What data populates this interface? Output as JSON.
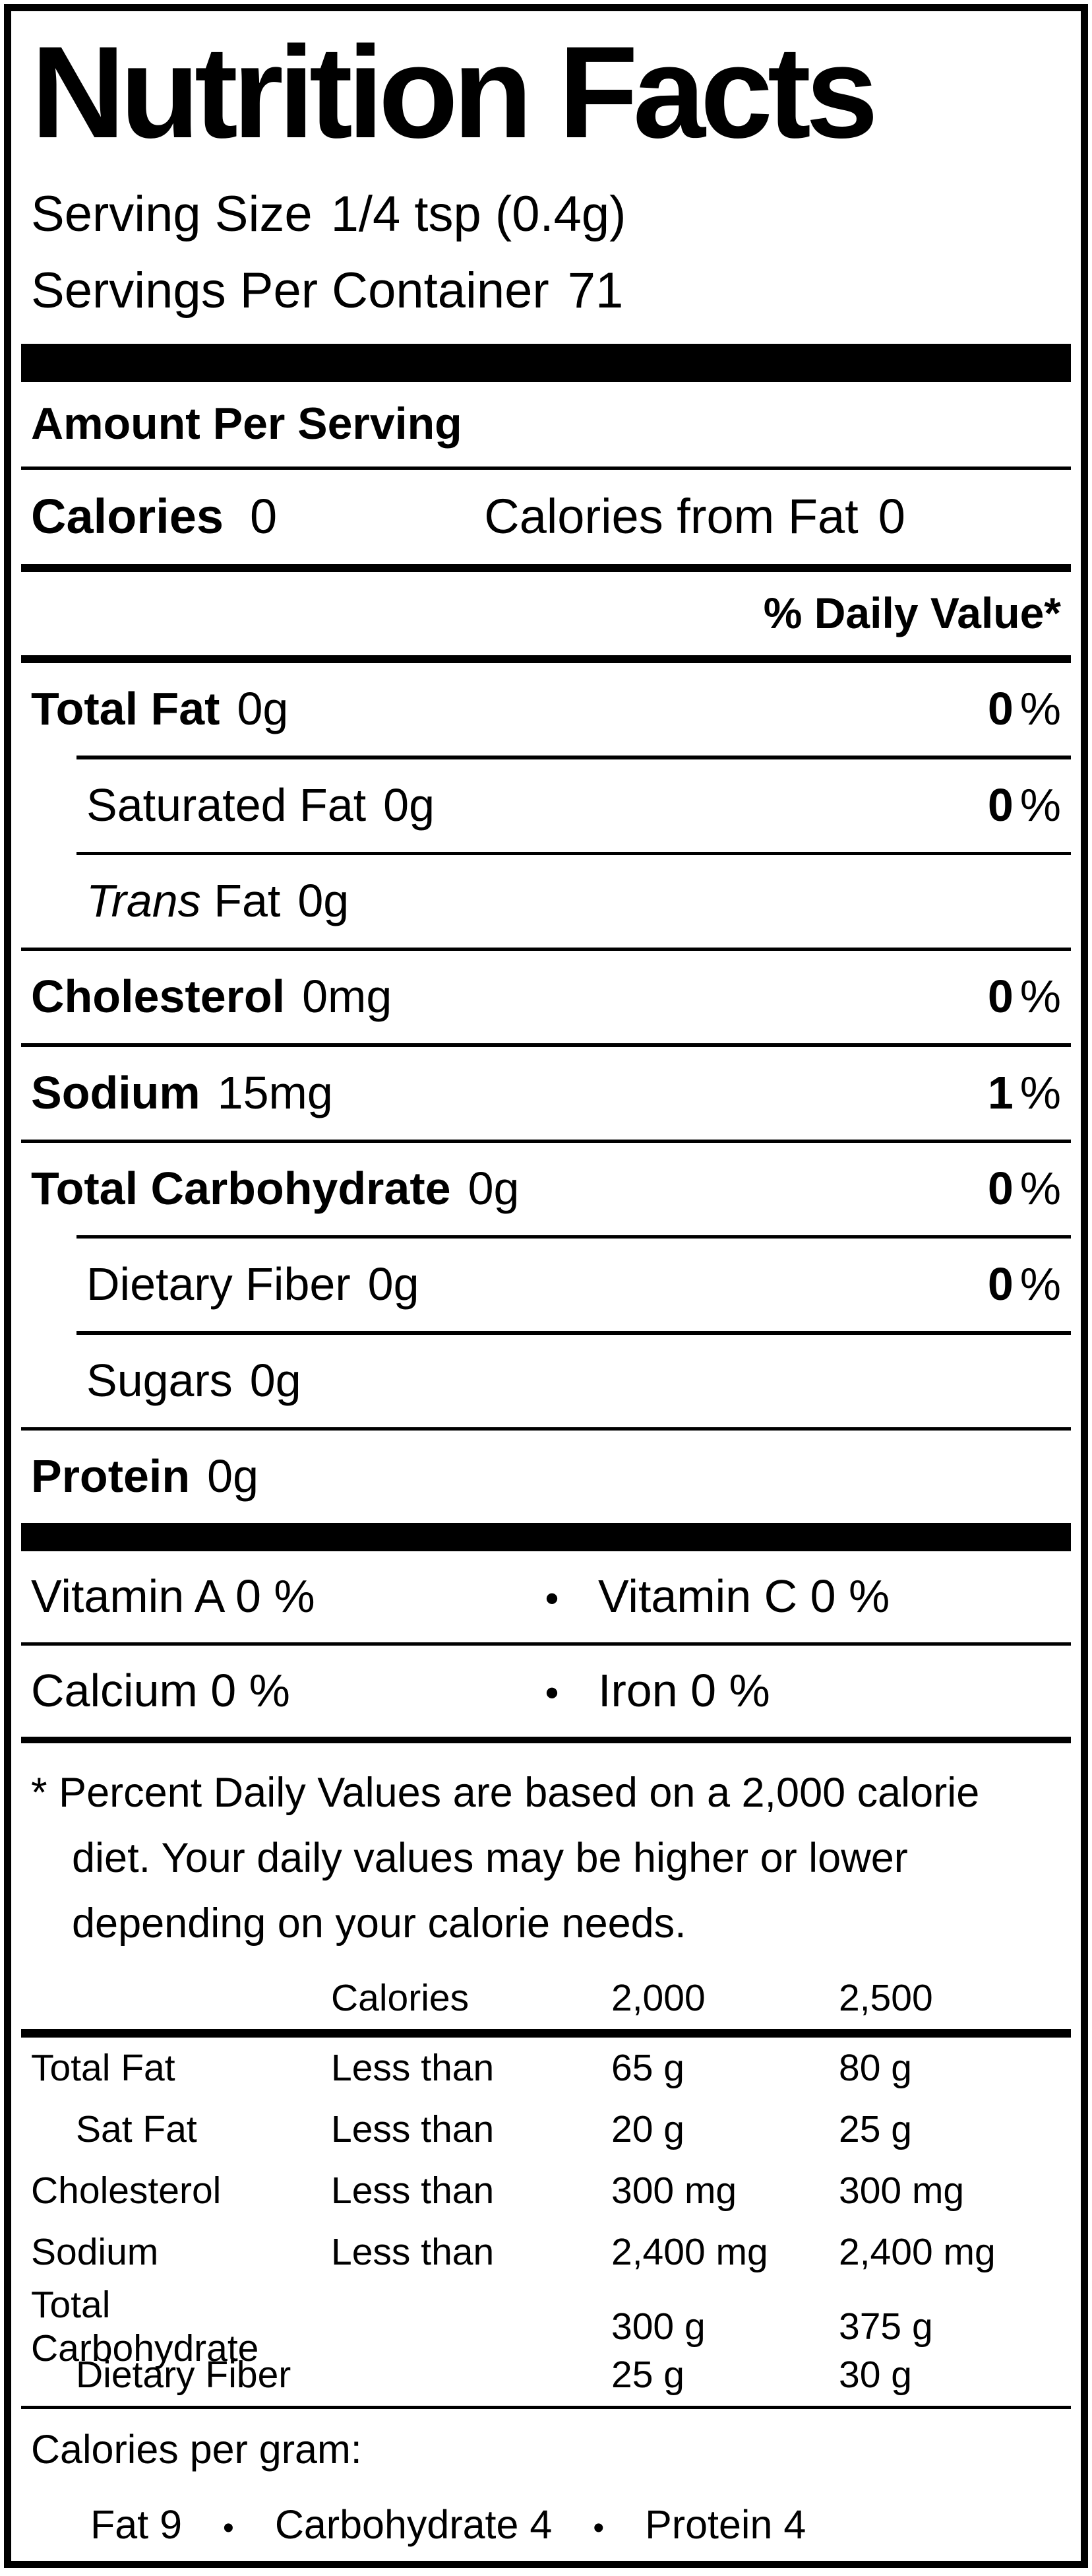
{
  "label": {
    "title": "Nutrition Facts",
    "serving_size_label": "Serving Size",
    "serving_size_value": "1/4 tsp  (0.4g)",
    "servings_per_container_label": "Servings Per Container",
    "servings_per_container_value": "71",
    "amount_per_serving": "Amount Per Serving",
    "calories_label": "Calories",
    "calories_value": "0",
    "calories_from_fat_label": "Calories from Fat",
    "calories_from_fat_value": "0",
    "daily_value_header": "% Daily Value*",
    "percent_sign": "%",
    "bullet": "•",
    "nutrients": [
      {
        "name": "Total Fat",
        "amount": "0g",
        "dv": "0"
      },
      {
        "name": "Saturated Fat",
        "amount": "0g",
        "dv": "0"
      },
      {
        "name_italic": "Trans",
        "name_rest": " Fat",
        "amount": "0g"
      },
      {
        "name": "Cholesterol",
        "amount": "0mg",
        "dv": "0"
      },
      {
        "name": "Sodium",
        "amount": "15mg",
        "dv": "1"
      },
      {
        "name": "Total Carbohydrate",
        "amount": "0g",
        "dv": "0"
      },
      {
        "name": "Dietary Fiber",
        "amount": "0g",
        "dv": "0"
      },
      {
        "name": "Sugars",
        "amount": "0g"
      },
      {
        "name": "Protein",
        "amount": "0g"
      }
    ],
    "vitamins": [
      {
        "left": "Vitamin A 0 %",
        "right": "Vitamin C 0 %"
      },
      {
        "left": "Calcium 0 %",
        "right": "Iron 0 %"
      }
    ],
    "footnote_asterisk": "*",
    "footnote_text": "Percent Daily Values are based on a 2,000 calorie diet. Your daily values may be higher or lower depending on your calorie needs.",
    "dv_table": {
      "header": {
        "col2": "Calories",
        "col3": "2,000",
        "col4": "2,500"
      },
      "rows": [
        {
          "label": "Total Fat",
          "qualifier": "Less than",
          "v2000": "65 g",
          "v2500": "80 g"
        },
        {
          "label": "Sat Fat",
          "qualifier": "Less than",
          "v2000": "20 g",
          "v2500": "25 g"
        },
        {
          "label": "Cholesterol",
          "qualifier": "Less than",
          "v2000": "300 mg",
          "v2500": "300 mg"
        },
        {
          "label": "Sodium",
          "qualifier": "Less than",
          "v2000": "2,400 mg",
          "v2500": "2,400 mg"
        },
        {
          "label": "Total Carbohydrate",
          "qualifier": "",
          "v2000": "300 g",
          "v2500": "375 g"
        },
        {
          "label": "Dietary Fiber",
          "qualifier": "",
          "v2000": "25 g",
          "v2500": "30 g"
        }
      ]
    },
    "calories_per_gram_label": "Calories per gram:",
    "calories_per_gram_items": [
      "Fat 9",
      "Carbohydrate 4",
      "Protein 4"
    ]
  }
}
